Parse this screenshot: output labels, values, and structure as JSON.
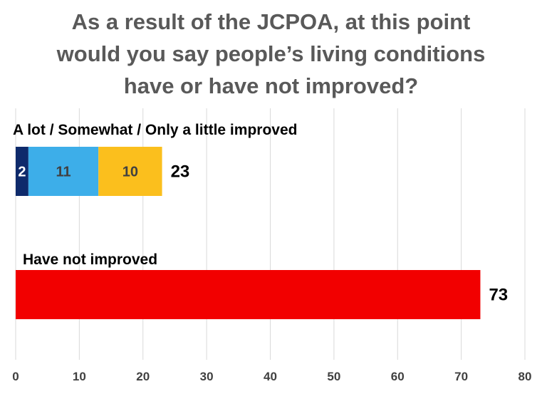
{
  "colors": {
    "a_lot": "#0e2a6b",
    "somewhat": "#3daee9",
    "only_a_little": "#fbbf1d",
    "not_improved": "#f20000",
    "grid": "#d9d9d9"
  },
  "chart_data": {
    "type": "bar",
    "orientation": "horizontal",
    "stacked": true,
    "title_lines": [
      "As a result of the JCPOA, at this point",
      "would you say people’s living conditions",
      "have or have not improved?"
    ],
    "categories": [
      "A lot / Somewhat / Only a little improved",
      "Have not improved"
    ],
    "series": [
      {
        "values": [
          2,
          0
        ],
        "color": "#0e2a6b",
        "label_color": "#ffffff"
      },
      {
        "values": [
          11,
          0
        ],
        "color": "#3daee9",
        "label_color": "#404040"
      },
      {
        "values": [
          10,
          0
        ],
        "color": "#fbbf1d",
        "label_color": "#404040"
      },
      {
        "values": [
          0,
          73
        ],
        "color": "#f20000",
        "label_color": "#ffffff"
      }
    ],
    "totals": [
      23,
      73
    ],
    "xlim": [
      0,
      80
    ],
    "xticks": [
      0,
      10,
      20,
      30,
      40,
      50,
      60,
      70,
      80
    ],
    "grid": "vertical",
    "legend": "none"
  }
}
